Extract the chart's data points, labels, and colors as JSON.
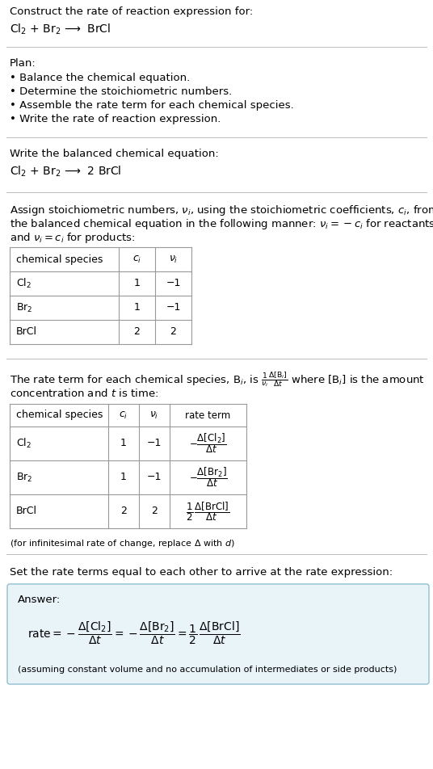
{
  "bg_color": "#ffffff",
  "text_color": "#000000",
  "section1_title": "Construct the rate of reaction expression for:",
  "section1_reaction": "Cl$_2$ + Br$_2$ ⟶  BrCl",
  "section2_title": "Plan:",
  "section2_bullets": [
    "• Balance the chemical equation.",
    "• Determine the stoichiometric numbers.",
    "• Assemble the rate term for each chemical species.",
    "• Write the rate of reaction expression."
  ],
  "section3_title": "Write the balanced chemical equation:",
  "section3_equation": "Cl$_2$ + Br$_2$ ⟶  2 BrCl",
  "section4_intro1": "Assign stoichiometric numbers, $\\nu_i$, using the stoichiometric coefficients, $c_i$, from",
  "section4_intro2": "the balanced chemical equation in the following manner: $\\nu_i = -c_i$ for reactants",
  "section4_intro3": "and $\\nu_i = c_i$ for products:",
  "table1_headers": [
    "chemical species",
    "$c_i$",
    "$\\nu_i$"
  ],
  "table1_rows": [
    [
      "Cl$_2$",
      "1",
      "−1"
    ],
    [
      "Br$_2$",
      "1",
      "−1"
    ],
    [
      "BrCl",
      "2",
      "2"
    ]
  ],
  "section5_intro1": "The rate term for each chemical species, B$_i$, is $\\frac{1}{\\nu_i}\\frac{\\Delta[\\mathrm{B}_i]}{\\Delta t}$ where [B$_i$] is the amount",
  "section5_intro2": "concentration and $t$ is time:",
  "table2_headers": [
    "chemical species",
    "$c_i$",
    "$\\nu_i$",
    "rate term"
  ],
  "table2_rows": [
    [
      "Cl$_2$",
      "1",
      "−1",
      "$-\\dfrac{\\Delta[\\mathrm{Cl_2}]}{\\Delta t}$"
    ],
    [
      "Br$_2$",
      "1",
      "−1",
      "$-\\dfrac{\\Delta[\\mathrm{Br_2}]}{\\Delta t}$"
    ],
    [
      "BrCl",
      "2",
      "2",
      "$\\dfrac{1}{2}\\,\\dfrac{\\Delta[\\mathrm{BrCl}]}{\\Delta t}$"
    ]
  ],
  "infinitesimal_note": "(for infinitesimal rate of change, replace Δ with $d$)",
  "section6_intro": "Set the rate terms equal to each other to arrive at the rate expression:",
  "answer_label": "Answer:",
  "answer_box_color": "#e8f4f8",
  "answer_box_border": "#90bfd0",
  "answer_equation": "$\\mathrm{rate} = -\\dfrac{\\Delta[\\mathrm{Cl_2}]}{\\Delta t} = -\\dfrac{\\Delta[\\mathrm{Br_2}]}{\\Delta t} = \\dfrac{1}{2}\\,\\dfrac{\\Delta[\\mathrm{BrCl}]}{\\Delta t}$",
  "answer_note": "(assuming constant volume and no accumulation of intermediates or side products)"
}
